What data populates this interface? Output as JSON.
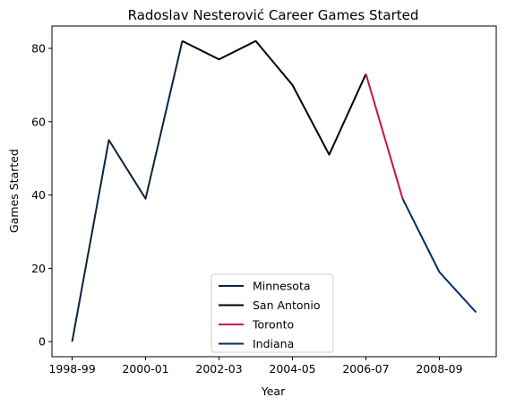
{
  "chart_data": {
    "type": "line",
    "title": "Radoslav Nesterović Career Games Started",
    "xlabel": "Year",
    "ylabel": "Games Started",
    "x_tick_labels": [
      "1998-99",
      "2000-01",
      "2002-03",
      "2004-05",
      "2006-07",
      "2008-09"
    ],
    "x_tick_values": [
      0,
      2,
      4,
      6,
      8,
      10
    ],
    "y_ticks": [
      0,
      20,
      40,
      60,
      80
    ],
    "xlim": [
      -0.55,
      11.55
    ],
    "ylim": [
      -4.1,
      86.1
    ],
    "grid": false,
    "legend_position": "lower center",
    "series": [
      {
        "name": "Minnesota",
        "color": "#0C2340",
        "points": [
          [
            0,
            0
          ],
          [
            1,
            55
          ],
          [
            2,
            39
          ],
          [
            3,
            82
          ]
        ]
      },
      {
        "name": "San Antonio",
        "color": "#000000",
        "points": [
          [
            3,
            82
          ],
          [
            4,
            77
          ],
          [
            5,
            82
          ],
          [
            6,
            70
          ],
          [
            7,
            51
          ],
          [
            8,
            73
          ]
        ]
      },
      {
        "name": "Toronto",
        "color": "#CE1141",
        "points": [
          [
            8,
            73
          ],
          [
            9,
            39
          ]
        ]
      },
      {
        "name": "Indiana",
        "color": "#002D62",
        "points": [
          [
            9,
            39
          ],
          [
            10,
            19
          ],
          [
            11,
            8
          ]
        ]
      }
    ]
  }
}
